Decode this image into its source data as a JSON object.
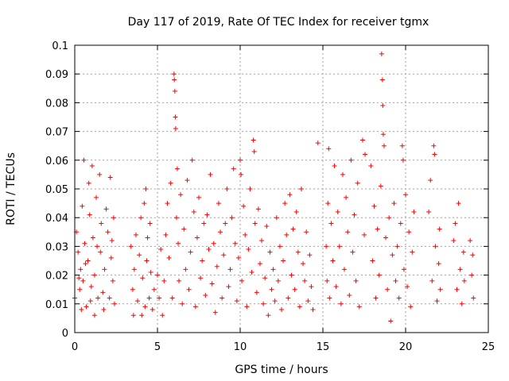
{
  "chart_data": {
    "type": "scatter",
    "title": "Day 117 of 2019, Rate Of TEC Index for receiver tgmx",
    "xlabel": "GPS time / hours",
    "ylabel": "ROTI / TECUs",
    "xlim": [
      0,
      25
    ],
    "ylim": [
      0,
      0.1
    ],
    "xticks": [
      0,
      5,
      10,
      15,
      20,
      25
    ],
    "yticks": [
      0,
      0.01,
      0.02,
      0.03,
      0.04,
      0.05,
      0.06,
      0.07,
      0.08,
      0.09,
      0.1
    ],
    "xtick_labels": [
      "0",
      "5",
      "10",
      "15",
      "20",
      "25"
    ],
    "ytick_labels": [
      "0",
      "0.01",
      "0.02",
      "0.03",
      "0.04",
      "0.05",
      "0.06",
      "0.07",
      "0.08",
      "0.09",
      "0.1"
    ],
    "grid": true,
    "marker": "+",
    "colors": {
      "points": "#ff0000",
      "grid": "#a0a0a0",
      "axes": "#000000"
    },
    "series": [
      {
        "values": [
          [
            0.0,
            0.012
          ],
          [
            0.1,
            0.035
          ],
          [
            0.2,
            0.028
          ],
          [
            0.3,
            0.015
          ],
          [
            0.35,
            0.022
          ],
          [
            0.45,
            0.044
          ],
          [
            0.5,
            0.018
          ],
          [
            0.55,
            0.06
          ],
          [
            0.6,
            0.031
          ],
          [
            0.7,
            0.009
          ],
          [
            0.8,
            0.025
          ],
          [
            0.85,
            0.052
          ],
          [
            0.9,
            0.041
          ],
          [
            1.0,
            0.016
          ],
          [
            1.05,
            0.058
          ],
          [
            1.1,
            0.033
          ],
          [
            1.2,
            0.02
          ],
          [
            1.3,
            0.047
          ],
          [
            1.4,
            0.012
          ],
          [
            1.5,
            0.055
          ],
          [
            1.55,
            0.028
          ],
          [
            1.6,
            0.038
          ],
          [
            1.7,
            0.014
          ],
          [
            1.8,
            0.022
          ],
          [
            1.9,
            0.043
          ],
          [
            2.0,
            0.035
          ],
          [
            2.1,
            0.012
          ],
          [
            2.15,
            0.054
          ],
          [
            2.2,
            0.026
          ],
          [
            2.3,
            0.018
          ],
          [
            2.35,
            0.04
          ],
          [
            2.4,
            0.01
          ],
          [
            1.2,
            0.006
          ],
          [
            0.4,
            0.008
          ],
          [
            1.75,
            0.008
          ],
          [
            0.95,
            0.011
          ],
          [
            0.25,
            0.019
          ],
          [
            0.65,
            0.024
          ],
          [
            1.35,
            0.03
          ],
          [
            2.25,
            0.032
          ],
          [
            3.4,
            0.03
          ],
          [
            3.5,
            0.015
          ],
          [
            3.6,
            0.022
          ],
          [
            3.7,
            0.034
          ],
          [
            3.8,
            0.011
          ],
          [
            3.9,
            0.027
          ],
          [
            4.0,
            0.04
          ],
          [
            4.1,
            0.019
          ],
          [
            4.2,
            0.045
          ],
          [
            4.3,
            0.05
          ],
          [
            4.35,
            0.025
          ],
          [
            4.4,
            0.033
          ],
          [
            4.5,
            0.012
          ],
          [
            4.55,
            0.038
          ],
          [
            4.6,
            0.021
          ],
          [
            4.7,
            0.008
          ],
          [
            4.8,
            0.015
          ],
          [
            3.55,
            0.006
          ],
          [
            4.05,
            0.006
          ],
          [
            4.25,
            0.009
          ],
          [
            5.0,
            0.02
          ],
          [
            5.1,
            0.012
          ],
          [
            5.2,
            0.029
          ],
          [
            5.3,
            0.006
          ],
          [
            5.4,
            0.018
          ],
          [
            5.5,
            0.034
          ],
          [
            5.6,
            0.045
          ],
          [
            5.7,
            0.026
          ],
          [
            5.8,
            0.052
          ],
          [
            5.9,
            0.012
          ],
          [
            6.0,
            0.09
          ],
          [
            6.02,
            0.088
          ],
          [
            6.05,
            0.084
          ],
          [
            6.08,
            0.075
          ],
          [
            6.1,
            0.071
          ],
          [
            6.15,
            0.04
          ],
          [
            6.2,
            0.057
          ],
          [
            6.25,
            0.031
          ],
          [
            6.3,
            0.018
          ],
          [
            6.4,
            0.048
          ],
          [
            6.5,
            0.01
          ],
          [
            6.6,
            0.036
          ],
          [
            6.7,
            0.022
          ],
          [
            6.8,
            0.053
          ],
          [
            6.9,
            0.015
          ],
          [
            7.0,
            0.028
          ],
          [
            7.1,
            0.06
          ],
          [
            7.2,
            0.042
          ],
          [
            7.3,
            0.009
          ],
          [
            7.4,
            0.033
          ],
          [
            7.5,
            0.047
          ],
          [
            7.6,
            0.019
          ],
          [
            7.7,
            0.025
          ],
          [
            7.8,
            0.038
          ],
          [
            7.9,
            0.013
          ],
          [
            8.0,
            0.041
          ],
          [
            8.1,
            0.029
          ],
          [
            8.2,
            0.055
          ],
          [
            8.3,
            0.017
          ],
          [
            8.4,
            0.031
          ],
          [
            8.5,
            0.007
          ],
          [
            8.6,
            0.023
          ],
          [
            8.7,
            0.045
          ],
          [
            8.8,
            0.035
          ],
          [
            8.9,
            0.012
          ],
          [
            9.0,
            0.027
          ],
          [
            9.1,
            0.038
          ],
          [
            9.2,
            0.05
          ],
          [
            9.3,
            0.016
          ],
          [
            9.4,
            0.022
          ],
          [
            9.5,
            0.04
          ],
          [
            9.6,
            0.057
          ],
          [
            9.7,
            0.031
          ],
          [
            9.8,
            0.011
          ],
          [
            9.9,
            0.026
          ],
          [
            10.0,
            0.06
          ],
          [
            10.05,
            0.055
          ],
          [
            10.1,
            0.018
          ],
          [
            10.2,
            0.044
          ],
          [
            10.3,
            0.034
          ],
          [
            10.4,
            0.009
          ],
          [
            10.5,
            0.029
          ],
          [
            10.6,
            0.05
          ],
          [
            10.7,
            0.021
          ],
          [
            10.8,
            0.067
          ],
          [
            10.85,
            0.063
          ],
          [
            10.9,
            0.038
          ],
          [
            11.0,
            0.014
          ],
          [
            11.1,
            0.043
          ],
          [
            11.2,
            0.024
          ],
          [
            11.3,
            0.032
          ],
          [
            11.4,
            0.01
          ],
          [
            11.5,
            0.019
          ],
          [
            11.6,
            0.037
          ],
          [
            11.7,
            0.006
          ],
          [
            11.8,
            0.028
          ],
          [
            11.9,
            0.015
          ],
          [
            12.0,
            0.022
          ],
          [
            12.1,
            0.011
          ],
          [
            12.2,
            0.04
          ],
          [
            12.3,
            0.018
          ],
          [
            12.4,
            0.03
          ],
          [
            12.5,
            0.008
          ],
          [
            12.6,
            0.025
          ],
          [
            12.7,
            0.045
          ],
          [
            12.8,
            0.034
          ],
          [
            12.9,
            0.012
          ],
          [
            13.0,
            0.048
          ],
          [
            13.1,
            0.02
          ],
          [
            13.2,
            0.036
          ],
          [
            13.3,
            0.015
          ],
          [
            13.4,
            0.042
          ],
          [
            13.5,
            0.028
          ],
          [
            13.6,
            0.009
          ],
          [
            13.7,
            0.05
          ],
          [
            13.8,
            0.024
          ],
          [
            13.9,
            0.018
          ],
          [
            14.0,
            0.035
          ],
          [
            14.1,
            0.011
          ],
          [
            14.2,
            0.027
          ],
          [
            14.3,
            0.016
          ],
          [
            14.4,
            0.008
          ],
          [
            14.7,
            0.066
          ],
          [
            15.2,
            0.03
          ],
          [
            15.25,
            0.018
          ],
          [
            15.3,
            0.045
          ],
          [
            15.35,
            0.064
          ],
          [
            15.4,
            0.012
          ],
          [
            15.5,
            0.038
          ],
          [
            15.6,
            0.025
          ],
          [
            15.7,
            0.058
          ],
          [
            15.8,
            0.016
          ],
          [
            15.9,
            0.042
          ],
          [
            16.0,
            0.03
          ],
          [
            16.1,
            0.01
          ],
          [
            16.2,
            0.055
          ],
          [
            16.3,
            0.022
          ],
          [
            16.4,
            0.047
          ],
          [
            16.5,
            0.035
          ],
          [
            16.6,
            0.013
          ],
          [
            16.7,
            0.06
          ],
          [
            16.8,
            0.028
          ],
          [
            16.9,
            0.041
          ],
          [
            17.0,
            0.018
          ],
          [
            17.1,
            0.052
          ],
          [
            17.2,
            0.009
          ],
          [
            17.4,
            0.067
          ],
          [
            17.5,
            0.034
          ],
          [
            17.55,
            0.062
          ],
          [
            17.9,
            0.058
          ],
          [
            18.0,
            0.025
          ],
          [
            18.1,
            0.044
          ],
          [
            18.2,
            0.012
          ],
          [
            18.3,
            0.036
          ],
          [
            18.4,
            0.02
          ],
          [
            18.5,
            0.051
          ],
          [
            18.55,
            0.097
          ],
          [
            18.6,
            0.088
          ],
          [
            18.62,
            0.079
          ],
          [
            18.65,
            0.069
          ],
          [
            18.7,
            0.065
          ],
          [
            18.8,
            0.033
          ],
          [
            18.9,
            0.015
          ],
          [
            19.0,
            0.04
          ],
          [
            19.1,
            0.004
          ],
          [
            19.2,
            0.027
          ],
          [
            19.3,
            0.045
          ],
          [
            19.4,
            0.018
          ],
          [
            19.5,
            0.03
          ],
          [
            19.6,
            0.012
          ],
          [
            19.7,
            0.038
          ],
          [
            19.8,
            0.065
          ],
          [
            19.85,
            0.06
          ],
          [
            19.9,
            0.022
          ],
          [
            20.0,
            0.048
          ],
          [
            20.1,
            0.016
          ],
          [
            20.2,
            0.035
          ],
          [
            20.3,
            0.009
          ],
          [
            20.4,
            0.028
          ],
          [
            20.5,
            0.042
          ],
          [
            21.4,
            0.042
          ],
          [
            21.5,
            0.053
          ],
          [
            21.6,
            0.018
          ],
          [
            21.7,
            0.065
          ],
          [
            21.75,
            0.062
          ],
          [
            21.8,
            0.03
          ],
          [
            21.9,
            0.011
          ],
          [
            22.0,
            0.024
          ],
          [
            22.05,
            0.036
          ],
          [
            22.1,
            0.015
          ],
          [
            22.9,
            0.032
          ],
          [
            23.0,
            0.038
          ],
          [
            23.1,
            0.015
          ],
          [
            23.2,
            0.045
          ],
          [
            23.3,
            0.022
          ],
          [
            23.4,
            0.01
          ],
          [
            23.5,
            0.028
          ],
          [
            23.55,
            0.018
          ],
          [
            23.9,
            0.032
          ],
          [
            24.0,
            0.02
          ],
          [
            24.05,
            0.027
          ],
          [
            24.1,
            0.012
          ]
        ]
      }
    ]
  }
}
